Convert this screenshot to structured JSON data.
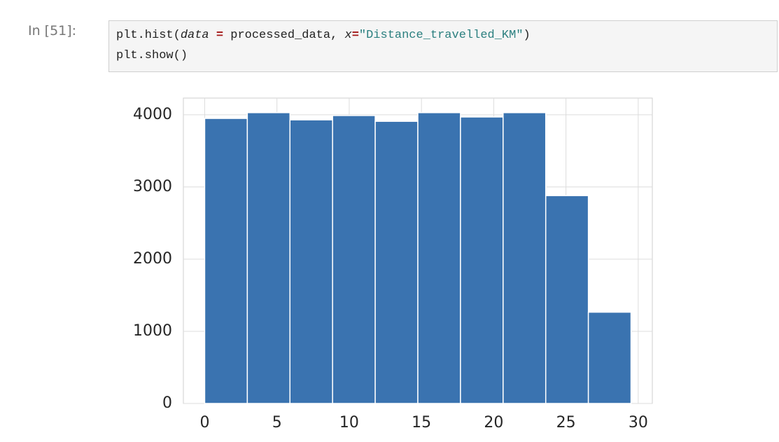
{
  "cell": {
    "prompt": "In [51]:",
    "code_lines": [
      [
        "plt.hist(",
        "data",
        " = ",
        "processed_data, ",
        "x",
        "=",
        "\"Distance_travelled_KM\"",
        ")"
      ],
      [
        "plt.show()"
      ]
    ]
  },
  "chart_data": {
    "type": "histogram",
    "bins": [
      0,
      2.95,
      5.9,
      8.85,
      11.8,
      14.75,
      17.7,
      20.65,
      23.6,
      26.55,
      29.5
    ],
    "values": [
      3950,
      4030,
      3930,
      3990,
      3910,
      4030,
      3970,
      4030,
      2880,
      1265
    ],
    "color": "#3a73b0",
    "xlim": [
      -1.475,
      30.975
    ],
    "xticks": [
      0,
      5,
      10,
      15,
      20,
      25,
      30
    ],
    "ylim": [
      0,
      4232
    ],
    "yticks": [
      0,
      1000,
      2000,
      3000,
      4000
    ],
    "grid": true
  }
}
